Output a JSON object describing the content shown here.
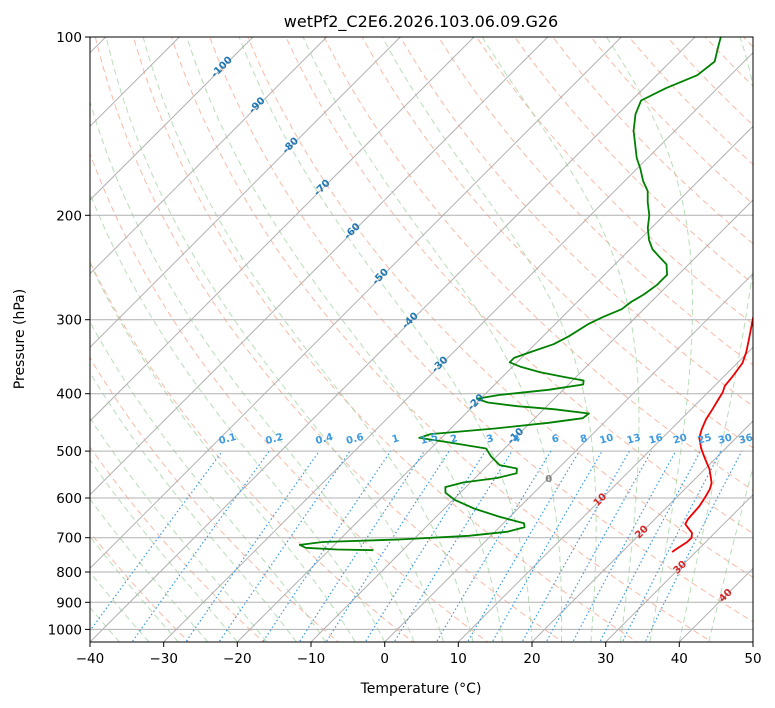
{
  "chart_data": {
    "type": "line",
    "title": "wetPf2_C2E6.2026.103.06.09.G26",
    "xlabel": "Temperature (°C)",
    "ylabel": "Pressure (hPa)",
    "xlim": [
      -40,
      50
    ],
    "ylim": [
      1050,
      100
    ],
    "x_ticks": [
      -40,
      -30,
      -20,
      -10,
      0,
      10,
      20,
      30,
      40,
      50
    ],
    "x_tick_labels": [
      "−40",
      "−30",
      "−20",
      "−10",
      "0",
      "10",
      "20",
      "30",
      "40",
      "50"
    ],
    "y_ticks": [
      100,
      200,
      300,
      400,
      500,
      600,
      700,
      800,
      900,
      1000
    ],
    "y_tick_labels": [
      "100",
      "200",
      "300",
      "400",
      "500",
      "600",
      "700",
      "800",
      "900",
      "1000"
    ],
    "y_scale": "log",
    "background_lines": {
      "dry_adiabats": "red dashed",
      "moist_adiabats": "green dashed",
      "mixing_ratio": "blue dotted",
      "isotherms_skewed": "gray solid"
    },
    "series": [
      {
        "name": "temperature",
        "color": "#ee0000",
        "points": [
          [
            26.8,
            740
          ],
          [
            27.0,
            730
          ],
          [
            27.5,
            712
          ],
          [
            27.5,
            700
          ],
          [
            26.9,
            687
          ],
          [
            25.8,
            675
          ],
          [
            24.8,
            664
          ],
          [
            24.5,
            652
          ],
          [
            24.4,
            636
          ],
          [
            24.3,
            620
          ],
          [
            23.9,
            600
          ],
          [
            23.4,
            580
          ],
          [
            22.8,
            566
          ],
          [
            21.8,
            552
          ],
          [
            20.6,
            536
          ],
          [
            18.6,
            515
          ],
          [
            16.7,
            495
          ],
          [
            15.0,
            475
          ],
          [
            14.2,
            460
          ],
          [
            13.4,
            442
          ],
          [
            12.9,
            425
          ],
          [
            12.4,
            410
          ],
          [
            12.0,
            398
          ],
          [
            11.4,
            388
          ],
          [
            11.2,
            375
          ],
          [
            10.7,
            355
          ],
          [
            9.7,
            340
          ],
          [
            8.2,
            322
          ],
          [
            6.2,
            300
          ],
          [
            4.3,
            280
          ],
          [
            1.9,
            256
          ],
          [
            -0.5,
            235
          ],
          [
            -2.8,
            216
          ],
          [
            -5.0,
            198
          ],
          [
            -6.9,
            183
          ],
          [
            -8.4,
            171
          ],
          [
            -9.6,
            162
          ],
          [
            -9.8,
            156
          ],
          [
            -9.3,
            151
          ],
          [
            -8.0,
            146
          ],
          [
            -6.9,
            141
          ],
          [
            -5.9,
            135
          ],
          [
            -5.2,
            128
          ],
          [
            -5.6,
            122
          ],
          [
            -6.6,
            116
          ],
          [
            -7.8,
            110
          ],
          [
            -8.9,
            105
          ],
          [
            -10.2,
            100
          ]
        ]
      },
      {
        "name": "dewpoint",
        "color": "#008000",
        "points": [
          [
            -14.0,
            735
          ],
          [
            -19.0,
            733
          ],
          [
            -23.5,
            728
          ],
          [
            -24.7,
            720
          ],
          [
            -22.0,
            712
          ],
          [
            -12.0,
            705
          ],
          [
            -3.0,
            695
          ],
          [
            1.7,
            684
          ],
          [
            3.4,
            672
          ],
          [
            2.8,
            662
          ],
          [
            -1.5,
            645
          ],
          [
            -6.0,
            625
          ],
          [
            -9.7,
            605
          ],
          [
            -12.0,
            588
          ],
          [
            -12.8,
            575
          ],
          [
            -11.0,
            565
          ],
          [
            -7.0,
            555
          ],
          [
            -5.0,
            545
          ],
          [
            -5.6,
            535
          ],
          [
            -8.4,
            528
          ],
          [
            -10.8,
            510
          ],
          [
            -12.5,
            495
          ],
          [
            -16.0,
            488
          ],
          [
            -19.0,
            482
          ],
          [
            -23.0,
            475
          ],
          [
            -22.0,
            468
          ],
          [
            -14.0,
            458
          ],
          [
            -7.5,
            448
          ],
          [
            -3.5,
            440
          ],
          [
            -3.3,
            432
          ],
          [
            -8.5,
            425
          ],
          [
            -14.0,
            420
          ],
          [
            -18.5,
            414
          ],
          [
            -20.5,
            408
          ],
          [
            -18.0,
            402
          ],
          [
            -12.0,
            394
          ],
          [
            -8.0,
            386
          ],
          [
            -8.5,
            380
          ],
          [
            -11.5,
            375
          ],
          [
            -15.5,
            368
          ],
          [
            -19.0,
            360
          ],
          [
            -21.0,
            354
          ],
          [
            -21.0,
            348
          ],
          [
            -19.5,
            340
          ],
          [
            -17.5,
            330
          ],
          [
            -16.5,
            320
          ],
          [
            -15.5,
            305
          ],
          [
            -14.5,
            297
          ],
          [
            -13.0,
            288
          ],
          [
            -12.7,
            280
          ],
          [
            -12.0,
            272
          ],
          [
            -11.5,
            262
          ],
          [
            -11.5,
            252
          ],
          [
            -13.0,
            242
          ],
          [
            -15.0,
            235
          ],
          [
            -17.0,
            228
          ],
          [
            -18.7,
            220
          ],
          [
            -20.5,
            210
          ],
          [
            -22.0,
            200
          ],
          [
            -24.0,
            190
          ],
          [
            -25.5,
            182
          ],
          [
            -27.5,
            175
          ],
          [
            -29.5,
            167
          ],
          [
            -31.5,
            160
          ],
          [
            -33.5,
            152
          ],
          [
            -35.6,
            144
          ],
          [
            -37.6,
            135
          ],
          [
            -38.7,
            128
          ],
          [
            -37.0,
            122
          ],
          [
            -34.5,
            116
          ],
          [
            -34.0,
            110
          ],
          [
            -35.5,
            104
          ],
          [
            -36.5,
            100
          ]
        ]
      }
    ],
    "labels": {
      "isotherm_labels": [
        "-100",
        "-90",
        "-80",
        "-70",
        "-60",
        "-50",
        "-40",
        "-30",
        "-20",
        "-10"
      ],
      "mixing_ratio_labels": [
        "0.1",
        "0.2",
        "0.4",
        "0.6",
        "1",
        "1.5",
        "2",
        "3",
        "4",
        "6",
        "8",
        "10",
        "13",
        "16",
        "20",
        "25",
        "30",
        "36"
      ],
      "temperature_marker_labels": [
        "0",
        "10",
        "20",
        "30",
        "40"
      ]
    }
  },
  "colors": {
    "mixing_ratio": "#3d9ae0",
    "isotherm_label": "#1f77b4",
    "temp_label_red": "#d62728",
    "zero_label": "#808080",
    "dry_adiabat": "#f9a98f",
    "moist_adiabat": "#9fd39f",
    "grid": "#b0b0b0"
  }
}
